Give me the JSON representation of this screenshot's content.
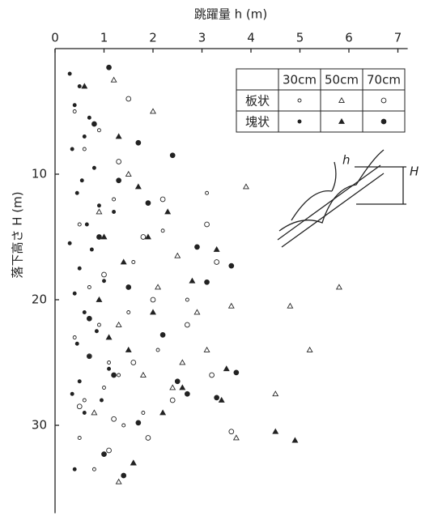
{
  "chart_data": {
    "type": "scatter",
    "x_label": "跳躍量 h (m)",
    "y_label": "落下高さ H (m)",
    "xlim": [
      0,
      7.2
    ],
    "xticks": [
      0,
      1,
      2,
      3,
      4,
      5,
      6,
      7
    ],
    "ylim": [
      0,
      37
    ],
    "yticks": [
      10,
      20,
      30
    ],
    "y_inverted": true,
    "x_axis_top": true,
    "color": "#222222",
    "legend_columns": [
      "30cm",
      "50cm",
      "70cm"
    ],
    "groups": [
      {
        "name": "板状",
        "series": [
          {
            "marker": "circle-small",
            "filled": false,
            "x": [
              0.4,
              0.6,
              0.9,
              0.5,
              1.2,
              0.7,
              1.6,
              0.4,
              0.9,
              1.3,
              2.1,
              0.6,
              1.0,
              1.8,
              2.7,
              0.5,
              1.1,
              1.5,
              3.1,
              0.8,
              1.4,
              2.2
            ],
            "y": [
              5,
              8,
              6.5,
              14,
              12,
              19,
              17,
              23,
              22,
              26,
              24,
              28,
              27,
              29,
              20,
              31,
              25,
              21,
              11.5,
              33.5,
              30,
              14.5
            ]
          },
          {
            "marker": "triangle",
            "filled": false,
            "x": [
              1.2,
              2.0,
              1.5,
              0.9,
              2.5,
              3.9,
              2.1,
              1.3,
              2.9,
              5.8,
              3.6,
              4.8,
              5.2,
              4.5,
              3.1,
              2.4,
              1.8,
              0.8,
              1.3,
              3.7,
              2.6,
              1.6
            ],
            "y": [
              2.5,
              5,
              10,
              13,
              16.5,
              11,
              19,
              22,
              21,
              19,
              20.5,
              20.5,
              24,
              27.5,
              24,
              27,
              26,
              29,
              34.5,
              31,
              25,
              33
            ]
          },
          {
            "marker": "circle",
            "filled": false,
            "x": [
              1.5,
              1.3,
              2.2,
              1.8,
              1.0,
              3.1,
              2.7,
              1.6,
              3.3,
              2.4,
              1.2,
              3.6,
              0.7,
              2.0,
              3.2,
              1.9,
              1.1,
              0.5
            ],
            "y": [
              4,
              9,
              12,
              15,
              18,
              14,
              22,
              25,
              17,
              28,
              29.5,
              30.5,
              24.5,
              20,
              26,
              31,
              32,
              28.5
            ]
          }
        ]
      },
      {
        "name": "塊状",
        "series": [
          {
            "marker": "circle-small",
            "filled": true,
            "x": [
              0.3,
              0.5,
              0.4,
              0.7,
              0.6,
              0.35,
              0.8,
              0.55,
              0.45,
              0.9,
              0.65,
              0.3,
              0.75,
              0.5,
              1.0,
              0.4,
              0.6,
              0.85,
              0.45,
              0.7,
              1.1,
              0.5,
              0.35,
              0.95,
              0.6,
              1.2,
              0.8,
              0.4
            ],
            "y": [
              2,
              3,
              4.5,
              5.5,
              7,
              8,
              9.5,
              10.5,
              11.5,
              12.5,
              14,
              15.5,
              16,
              17.5,
              18.5,
              19.5,
              21,
              22.5,
              23.5,
              24.5,
              25.5,
              26.5,
              27.5,
              28,
              29,
              13,
              6,
              33.5
            ]
          },
          {
            "marker": "triangle",
            "filled": true,
            "x": [
              0.6,
              1.3,
              1.7,
              2.3,
              1.9,
              1.4,
              2.8,
              3.3,
              2.0,
              1.1,
              4.5,
              3.5,
              2.6,
              0.9,
              1.5,
              2.2,
              4.9,
              1.6,
              3.4,
              1.0
            ],
            "y": [
              3,
              7,
              11,
              13,
              15,
              17,
              18.5,
              16,
              21,
              23,
              30.5,
              25.5,
              27,
              20,
              24,
              29,
              31.2,
              33,
              28,
              15
            ]
          },
          {
            "marker": "circle",
            "filled": true,
            "x": [
              1.1,
              0.8,
              1.7,
              1.3,
              2.4,
              1.9,
              0.9,
              2.9,
              3.6,
              3.1,
              1.5,
              2.2,
              0.7,
              3.7,
              1.2,
              2.7,
              3.3,
              1.7,
              1.0,
              2.5,
              1.4
            ],
            "y": [
              1.5,
              6,
              7.5,
              10.5,
              8.5,
              12.3,
              15,
              15.8,
              17.3,
              18.6,
              19,
              22.8,
              21.5,
              25.8,
              26,
              27.5,
              27.8,
              29.8,
              32.3,
              26.5,
              34
            ]
          }
        ]
      }
    ],
    "inset": {
      "h_label": "h",
      "H_label": "H"
    }
  }
}
